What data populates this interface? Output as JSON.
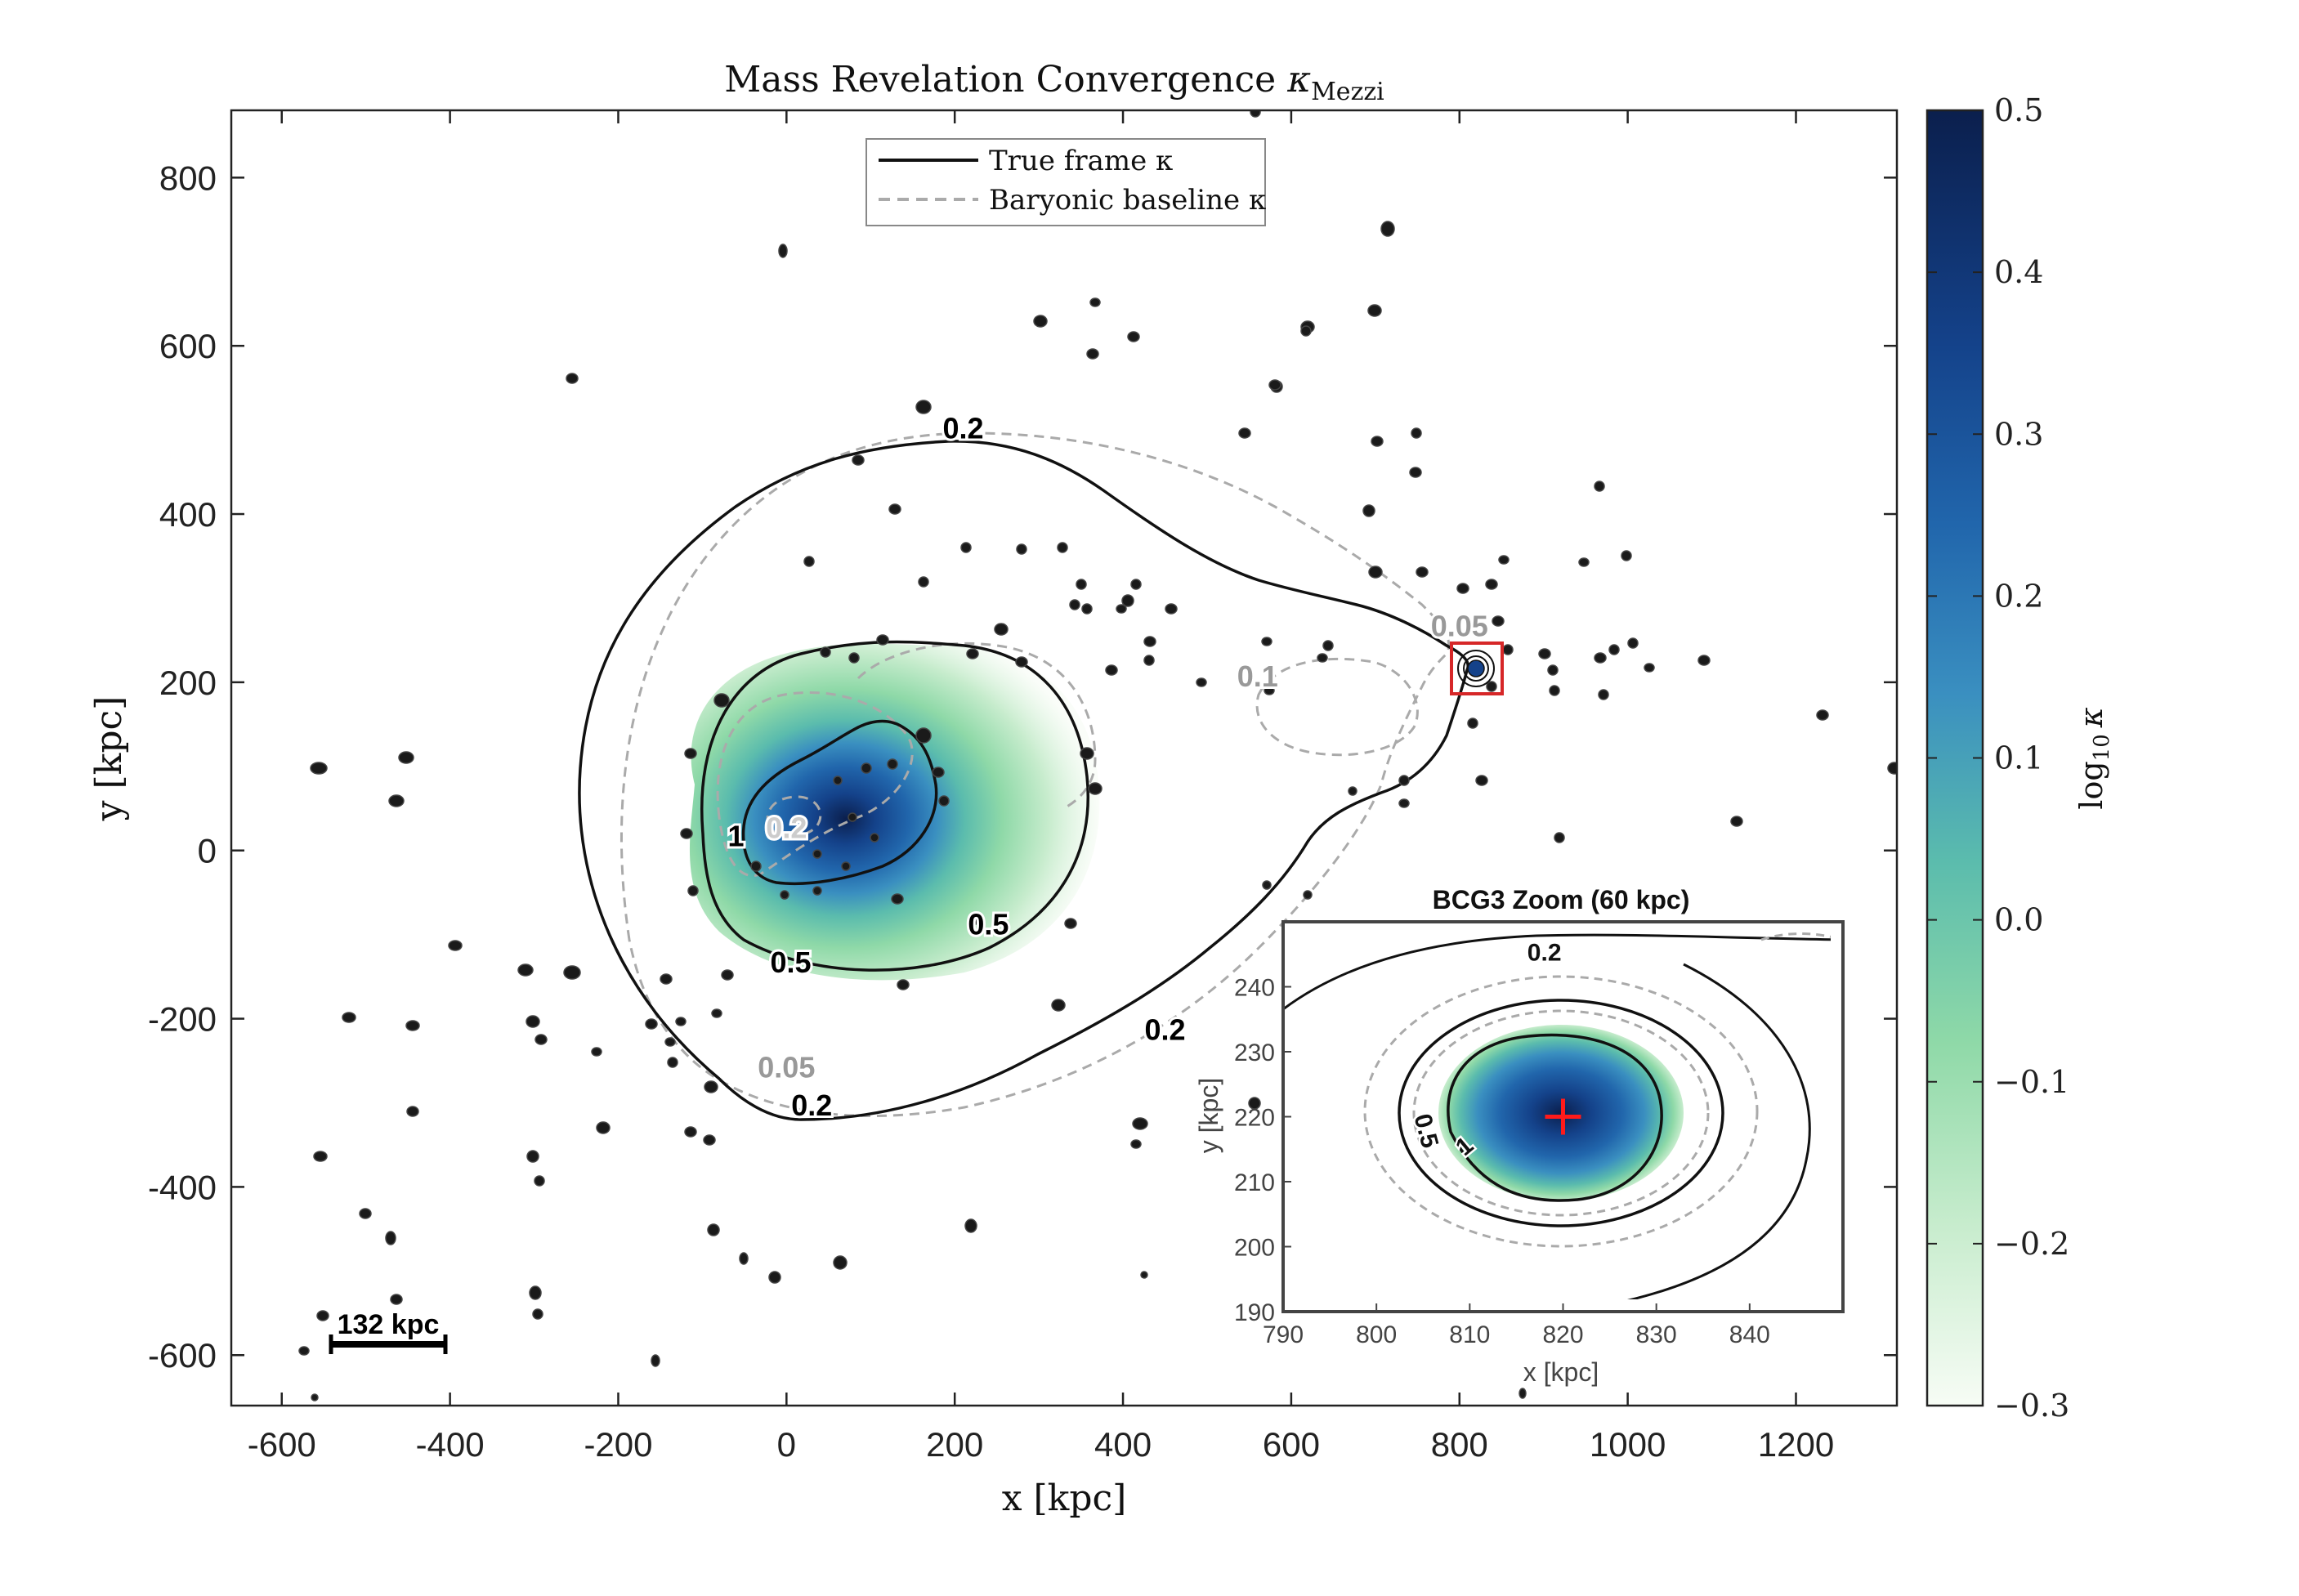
{
  "chart_data": {
    "type": "heatmap",
    "title": "Mass Revelation Convergence",
    "title_symbol": "κ",
    "title_subscript": "Mezzi",
    "xlabel": "x [kpc]",
    "ylabel": "y [kpc]",
    "xlim": [
      -660,
      1320
    ],
    "ylim": [
      -660,
      880
    ],
    "x_ticks": [
      "-600",
      "-400",
      "-200",
      "0",
      "200",
      "400",
      "600",
      "800",
      "1000",
      "1200"
    ],
    "x_tick_values": [
      -600,
      -400,
      -200,
      0,
      200,
      400,
      600,
      800,
      1000,
      1200
    ],
    "y_ticks": [
      "800",
      "600",
      "400",
      "200",
      "0",
      "-200",
      "-400",
      "-600"
    ],
    "y_tick_values": [
      800,
      600,
      400,
      200,
      0,
      -200,
      -400,
      -600
    ],
    "colorbar": {
      "label": "log10 κ",
      "label_main": "log",
      "label_sub": "10",
      "label_sym": "κ",
      "min": -0.3,
      "max": 0.5,
      "ticks": [
        "0.5",
        "0.4",
        "0.3",
        "0.2",
        "0.1",
        "0.0",
        "−0.1",
        "−0.2",
        "−0.3"
      ],
      "tick_values": [
        0.5,
        0.4,
        0.3,
        0.2,
        0.1,
        0.0,
        -0.1,
        -0.2,
        -0.3
      ],
      "colors": [
        "#f7fcf5",
        "#c7eccd",
        "#8fd9a8",
        "#5bbcad",
        "#3a8fc0",
        "#2166ac",
        "#14428a",
        "#0b1f4d"
      ]
    },
    "legend": {
      "placement": "top-center",
      "entries": [
        {
          "label": "True frame κ",
          "style": "solid",
          "color": "#000000"
        },
        {
          "label": "Baryonic baseline κ",
          "style": "dashed",
          "color": "#aaaaaa"
        }
      ]
    },
    "contour_labels": [
      {
        "text": "0.2",
        "x": 210,
        "y": 490,
        "color": "#000000"
      },
      {
        "text": "0.2",
        "x": 450,
        "y": -225,
        "color": "#000000"
      },
      {
        "text": "0.2",
        "x": 30,
        "y": -315,
        "color": "#000000"
      },
      {
        "text": "0.5",
        "x": 240,
        "y": -100,
        "color": "#000000"
      },
      {
        "text": "0.5",
        "x": 5,
        "y": -145,
        "color": "#000000"
      },
      {
        "text": "1",
        "x": -60,
        "y": 5,
        "color": "#000000"
      },
      {
        "text": "0.05",
        "x": 800,
        "y": 255,
        "color": "#999999"
      },
      {
        "text": "0.1",
        "x": 560,
        "y": 195,
        "color": "#999999"
      },
      {
        "text": "0.05",
        "x": 0,
        "y": -270,
        "color": "#999999"
      },
      {
        "text": "0.2",
        "x": 0,
        "y": 15,
        "color": "#cccccc"
      }
    ],
    "scale_bar": {
      "label": "132 kpc",
      "x_start": -545,
      "x_end": -410,
      "y": -585
    },
    "highlight_box": {
      "x_min": 785,
      "x_max": 850,
      "y_min": 190,
      "y_max": 250,
      "color": "#d62728"
    },
    "inset": {
      "title": "BCG3 Zoom (60 kpc)",
      "xlabel": "x [kpc]",
      "ylabel": "y [kpc]",
      "xlim": [
        790,
        850
      ],
      "ylim": [
        190,
        250
      ],
      "x_ticks": [
        "790",
        "800",
        "810",
        "820",
        "830",
        "840"
      ],
      "x_tick_values": [
        790,
        800,
        810,
        820,
        830,
        840
      ],
      "y_ticks": [
        "240",
        "230",
        "220",
        "210",
        "200",
        "190"
      ],
      "y_tick_values": [
        240,
        230,
        220,
        210,
        200,
        190
      ],
      "marker": {
        "x": 820,
        "y": 220,
        "color": "#ff1a1a"
      },
      "contour_labels": [
        {
          "text": "0.2",
          "x": 818,
          "y": 244
        },
        {
          "text": "0.5",
          "x": 804.5,
          "y": 217.5
        },
        {
          "text": "1",
          "x": 810,
          "y": 214.5
        }
      ]
    }
  }
}
